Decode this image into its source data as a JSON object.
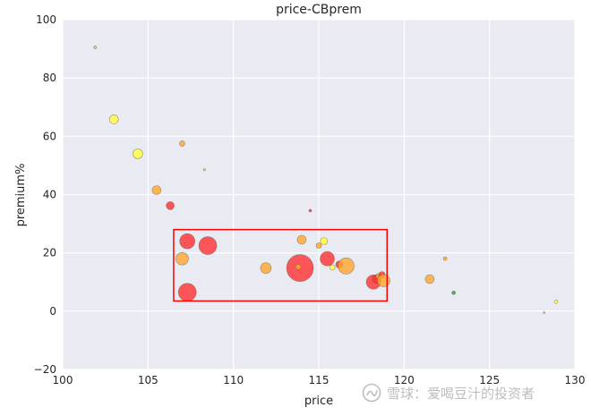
{
  "chart_data": {
    "type": "scatter",
    "title": "price-CBprem",
    "xlabel": "price",
    "ylabel": "premium%",
    "xlim": [
      100,
      130
    ],
    "ylim": [
      -20,
      100
    ],
    "xticks": [
      100,
      105,
      110,
      115,
      120,
      125,
      130
    ],
    "yticks": [
      -20,
      0,
      20,
      40,
      60,
      80,
      100
    ],
    "grid": true,
    "background": "#eaeaf2",
    "grid_color": "#ffffff",
    "highlight_box": {
      "x": [
        106.5,
        119
      ],
      "y": [
        3.5,
        28
      ],
      "color": "#ff0000"
    },
    "points": [
      {
        "x": 101.9,
        "y": 90.5,
        "size": 1.5,
        "color": "#c8d64e"
      },
      {
        "x": 103.0,
        "y": 65.8,
        "size": 5,
        "color": "#ffff33"
      },
      {
        "x": 104.4,
        "y": 54.0,
        "size": 5.5,
        "color": "#ffff33"
      },
      {
        "x": 105.5,
        "y": 41.5,
        "size": 5,
        "color": "#ffa62b"
      },
      {
        "x": 106.3,
        "y": 36.2,
        "size": 4.5,
        "color": "#ff3030"
      },
      {
        "x": 107.0,
        "y": 57.5,
        "size": 3,
        "color": "#ffa62b"
      },
      {
        "x": 108.3,
        "y": 48.5,
        "size": 1.2,
        "color": "#c8d64e"
      },
      {
        "x": 107.0,
        "y": 18.0,
        "size": 7,
        "color": "#ffa62b"
      },
      {
        "x": 107.3,
        "y": 24.0,
        "size": 8.5,
        "color": "#ff3030"
      },
      {
        "x": 108.5,
        "y": 22.5,
        "size": 10,
        "color": "#ff3030"
      },
      {
        "x": 107.3,
        "y": 6.5,
        "size": 10,
        "color": "#ff3030"
      },
      {
        "x": 111.9,
        "y": 14.8,
        "size": 6,
        "color": "#ffa62b"
      },
      {
        "x": 114.0,
        "y": 24.5,
        "size": 5,
        "color": "#ffa62b"
      },
      {
        "x": 114.5,
        "y": 34.5,
        "size": 1.5,
        "color": "#ff3030"
      },
      {
        "x": 113.9,
        "y": 14.8,
        "size": 15,
        "color": "#ff3030"
      },
      {
        "x": 113.8,
        "y": 15.2,
        "size": 3,
        "color": "#ffa62b"
      },
      {
        "x": 115.0,
        "y": 22.5,
        "size": 3,
        "color": "#ffa62b"
      },
      {
        "x": 115.3,
        "y": 24.0,
        "size": 4,
        "color": "#ffff33"
      },
      {
        "x": 115.5,
        "y": 18.0,
        "size": 8,
        "color": "#ff3030"
      },
      {
        "x": 115.8,
        "y": 15.0,
        "size": 3,
        "color": "#ffff33"
      },
      {
        "x": 116.2,
        "y": 16.0,
        "size": 4,
        "color": "#ff3030"
      },
      {
        "x": 116.6,
        "y": 15.5,
        "size": 9,
        "color": "#ffa62b"
      },
      {
        "x": 118.2,
        "y": 10.0,
        "size": 8,
        "color": "#ff3030"
      },
      {
        "x": 118.4,
        "y": 11.0,
        "size": 5,
        "color": "#ff3030"
      },
      {
        "x": 118.5,
        "y": 12.0,
        "size": 3,
        "color": "#ffa62b"
      },
      {
        "x": 118.7,
        "y": 12.5,
        "size": 3.5,
        "color": "#ff3030"
      },
      {
        "x": 118.8,
        "y": 10.5,
        "size": 7,
        "color": "#ffa62b"
      },
      {
        "x": 121.5,
        "y": 11.0,
        "size": 5,
        "color": "#ffa62b"
      },
      {
        "x": 122.4,
        "y": 18.0,
        "size": 2,
        "color": "#ffa62b"
      },
      {
        "x": 122.9,
        "y": 6.3,
        "size": 2,
        "color": "#2ca02c"
      },
      {
        "x": 128.2,
        "y": -0.5,
        "size": 1,
        "color": "#c8d64e"
      },
      {
        "x": 128.9,
        "y": 3.2,
        "size": 2,
        "color": "#ffff33"
      }
    ]
  },
  "watermark": {
    "text": "雪球：爱喝豆汁的投资者"
  }
}
